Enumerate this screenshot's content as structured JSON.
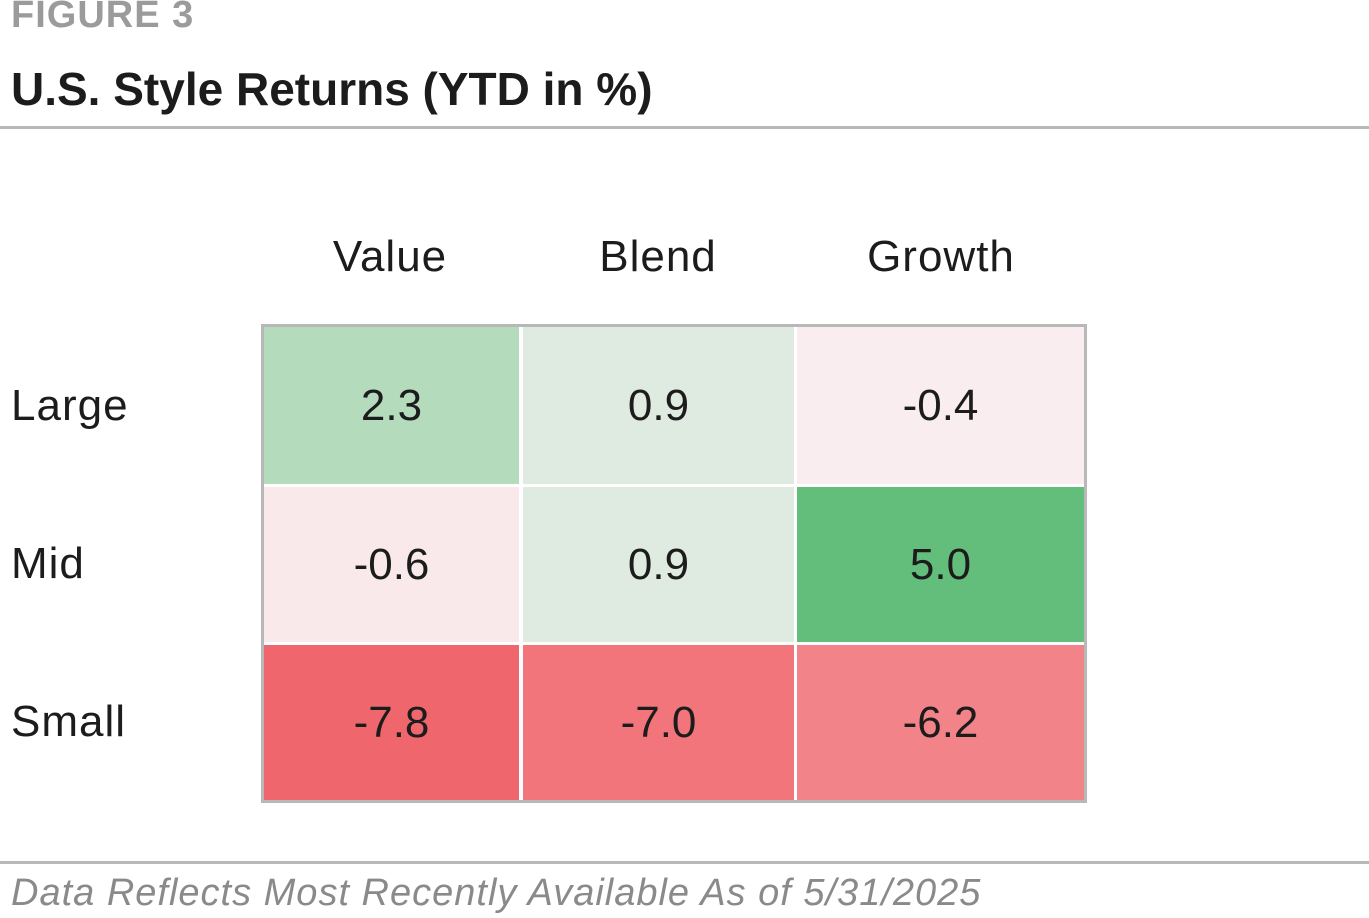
{
  "figure_label": "FIGURE 3",
  "chart_data": {
    "type": "heatmap",
    "title": "U.S. Style Returns (YTD in %)",
    "columns": [
      "Value",
      "Blend",
      "Growth"
    ],
    "rows": [
      "Large",
      "Mid",
      "Small"
    ],
    "values": [
      [
        2.3,
        0.9,
        -0.4
      ],
      [
        -0.6,
        0.9,
        5.0
      ],
      [
        -7.8,
        -7.0,
        -6.2
      ]
    ],
    "labels": [
      [
        "2.3",
        "0.9",
        "-0.4"
      ],
      [
        "-0.6",
        "0.9",
        "5.0"
      ],
      [
        "-7.8",
        "-7.0",
        "-6.2"
      ]
    ],
    "colors": {
      "positive_high": "#63be7b",
      "neutral": "#faf4f6",
      "negative_high": "#f0666d"
    }
  },
  "footer": "Data Reflects Most Recently Available As of 5/31/2025"
}
